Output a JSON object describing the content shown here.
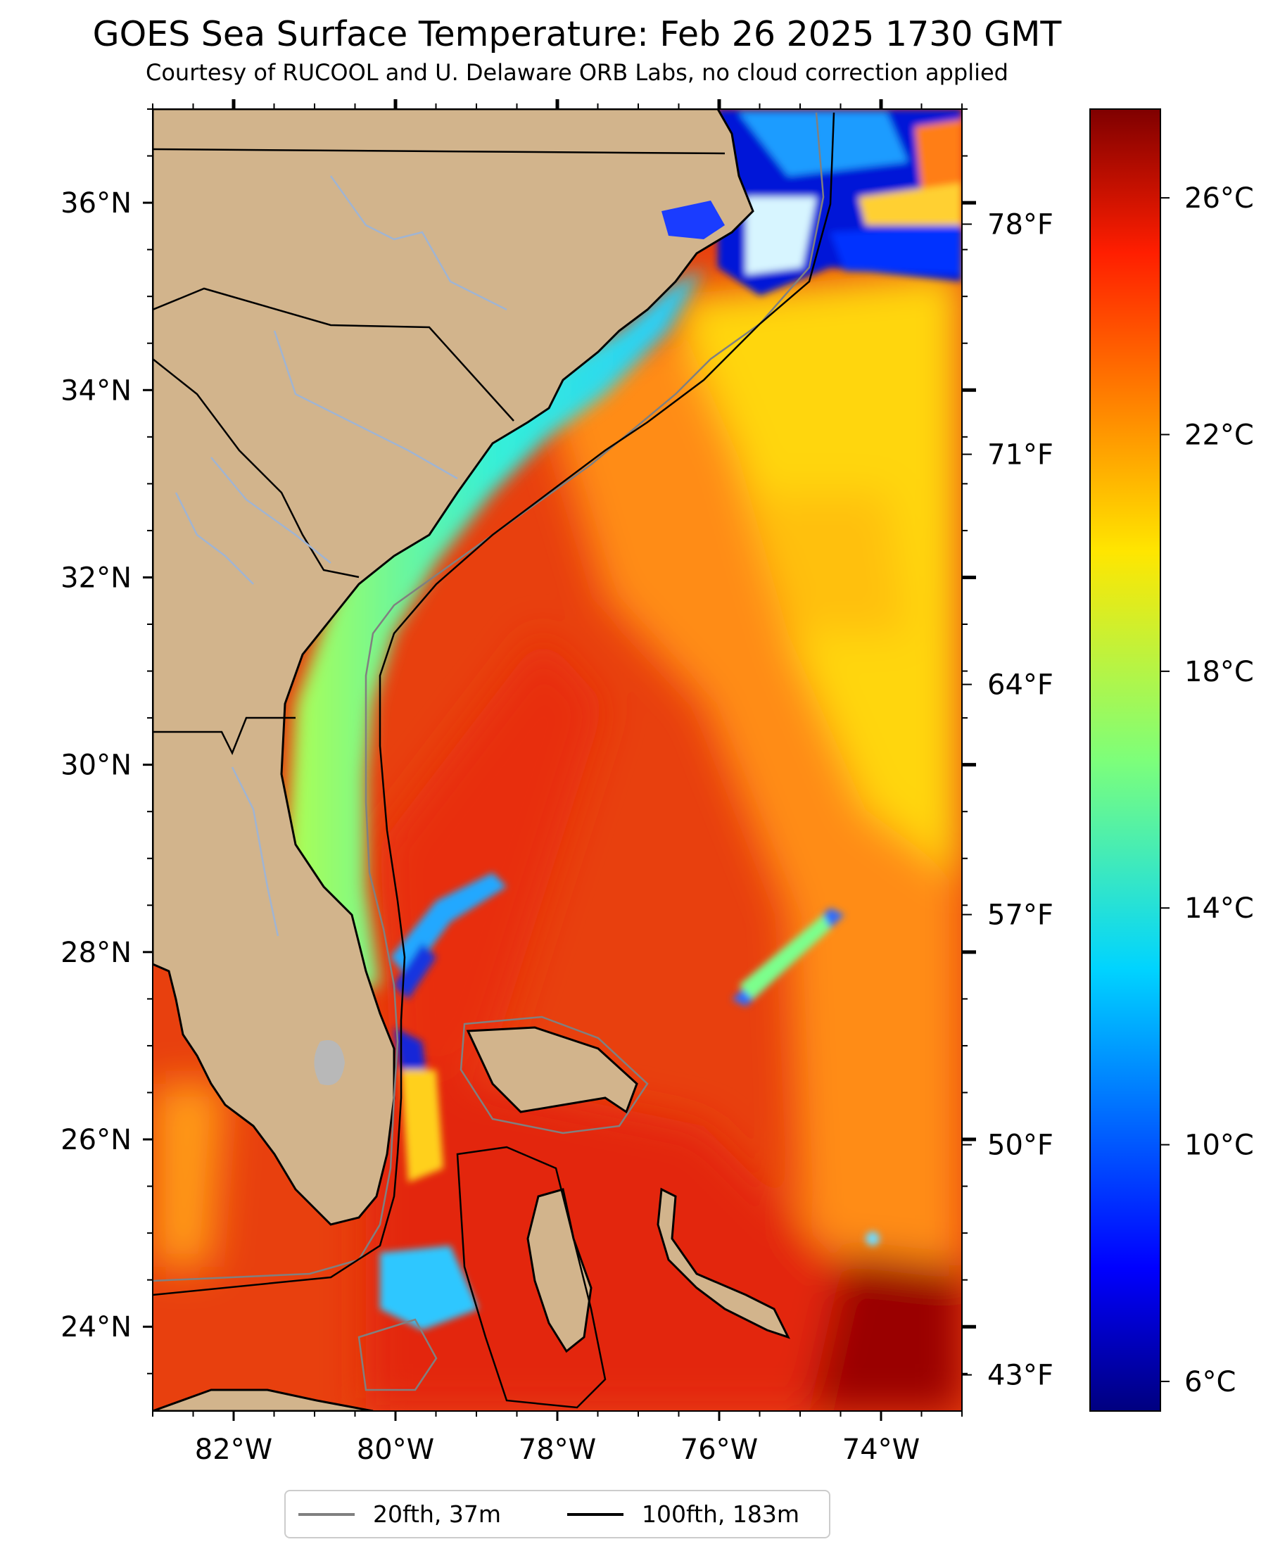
{
  "title": "GOES Sea Surface Temperature: Feb 26 2025 1730 GMT",
  "subtitle": "Courtesy of RUCOOL and U. Delaware ORB Labs, no cloud correction applied",
  "map": {
    "lon_range": [
      -83,
      -73
    ],
    "lat_range": [
      23.1,
      37
    ],
    "lon_ticks": [
      -82,
      -80,
      -78,
      -76,
      -74
    ],
    "lon_tick_labels": [
      "82°W",
      "80°W",
      "78°W",
      "76°W",
      "74°W"
    ],
    "lat_ticks": [
      24,
      26,
      28,
      30,
      32,
      34,
      36
    ],
    "lat_tick_labels": [
      "24°N",
      "26°N",
      "28°N",
      "30°N",
      "32°N",
      "34°N",
      "36°N"
    ],
    "fahrenheit_ticks": [
      43,
      50,
      57,
      64,
      71,
      78
    ],
    "fahrenheit_tick_labels": [
      "43°F",
      "50°F",
      "57°F",
      "64°F",
      "71°F",
      "78°F"
    ],
    "land_color": "#D2B48C",
    "river_color": "#a0b4d2",
    "lake_color": "#b8b8b8"
  },
  "colorbar": {
    "range_c": [
      5.5,
      27.5
    ],
    "ticks_c": [
      6,
      10,
      14,
      18,
      22,
      26
    ],
    "tick_labels": [
      "6°C",
      "10°C",
      "14°C",
      "18°C",
      "22°C",
      "26°C"
    ],
    "colormap": "jet"
  },
  "legend": {
    "items": [
      {
        "label": "20fth, 37m",
        "color": "#808080"
      },
      {
        "label": "100fth, 183m",
        "color": "#000000"
      }
    ]
  }
}
